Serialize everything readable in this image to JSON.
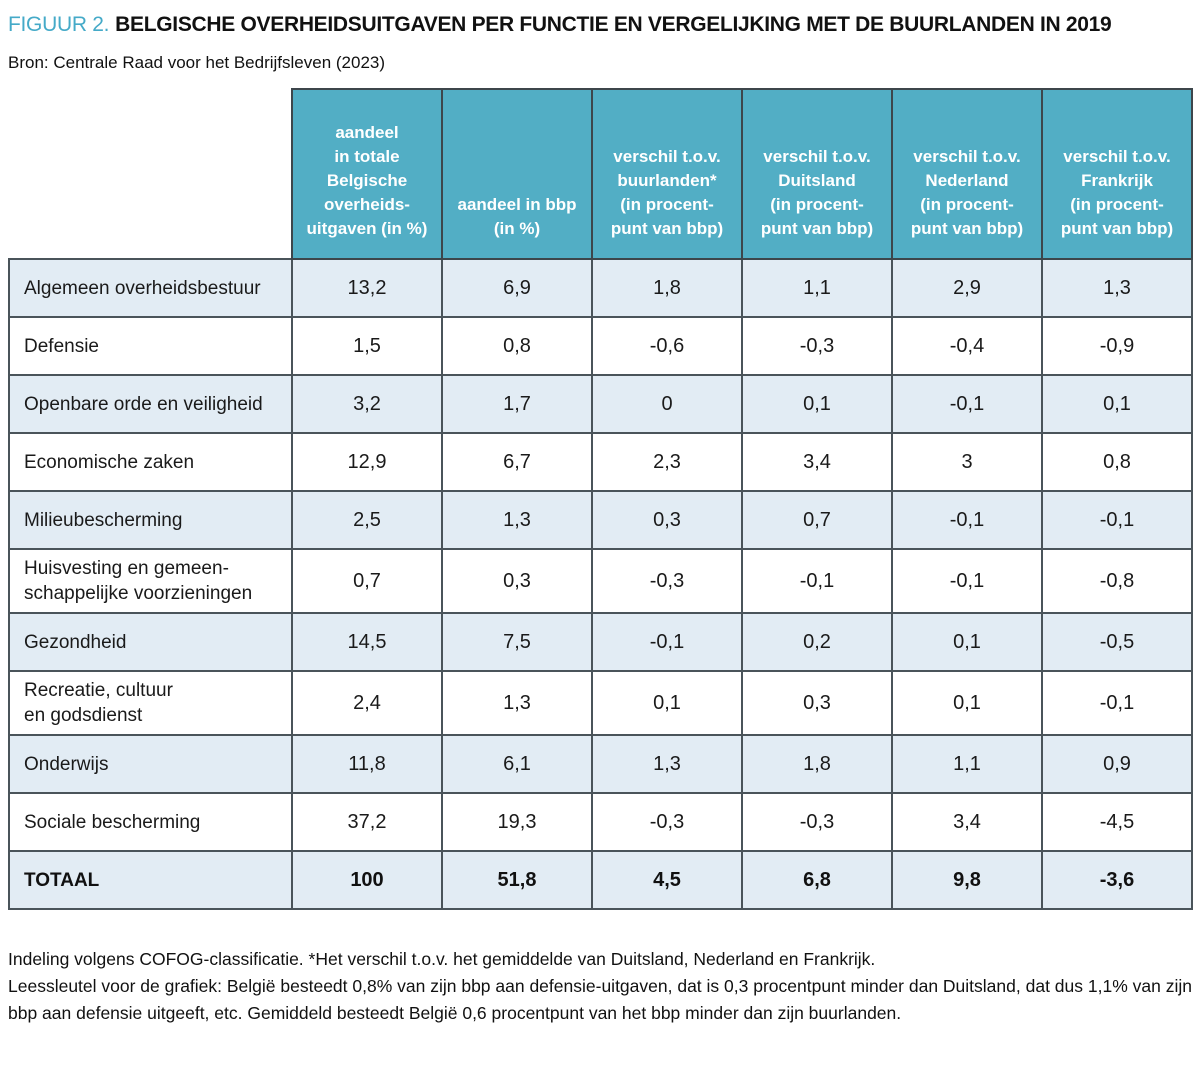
{
  "title": {
    "prefix": "FIGUUR 2.",
    "text": "BELGISCHE OVERHEIDSUITGAVEN PER FUNCTIE EN VERGELIJKING MET DE BUURLANDEN IN 2019"
  },
  "source": "Bron: Centrale Raad voor het Bedrijfsleven (2023)",
  "colors": {
    "accent": "#45aac8",
    "header_bg": "#52aec5",
    "alt_row_bg": "#e2ecf4",
    "border": "#4a545a"
  },
  "chart_data": {
    "type": "table",
    "columns": [
      [
        "aandeel",
        "in totale",
        "Belgische",
        "overheids-",
        "uitgaven (in %)"
      ],
      [
        "aandeel in bbp",
        "(in %)"
      ],
      [
        "verschil t.o.v.",
        "buurlanden*",
        "(in procent-",
        "punt van bbp)"
      ],
      [
        "verschil t.o.v.",
        "Duitsland",
        "(in procent-",
        "punt van bbp)"
      ],
      [
        "verschil t.o.v.",
        "Nederland",
        "(in procent-",
        "punt van bbp)"
      ],
      [
        "verschil t.o.v.",
        "Frankrijk",
        "(in procent-",
        "punt van bbp)"
      ]
    ],
    "rows": [
      {
        "label": "Algemeen overheidsbestuur",
        "values": [
          "13,2",
          "6,9",
          "1,8",
          "1,1",
          "2,9",
          "1,3"
        ],
        "total": false
      },
      {
        "label": "Defensie",
        "values": [
          "1,5",
          "0,8",
          "-0,6",
          "-0,3",
          "-0,4",
          "-0,9"
        ],
        "total": false
      },
      {
        "label": "Openbare orde en veiligheid",
        "values": [
          "3,2",
          "1,7",
          "0",
          "0,1",
          "-0,1",
          "0,1"
        ],
        "total": false
      },
      {
        "label": "Economische zaken",
        "values": [
          "12,9",
          "6,7",
          "2,3",
          "3,4",
          "3",
          "0,8"
        ],
        "total": false
      },
      {
        "label": "Milieubescherming",
        "values": [
          "2,5",
          "1,3",
          "0,3",
          "0,7",
          "-0,1",
          "-0,1"
        ],
        "total": false
      },
      {
        "label": [
          "Huisvesting en gemeen-",
          "schappelijke voorzieningen"
        ],
        "values": [
          "0,7",
          "0,3",
          "-0,3",
          "-0,1",
          "-0,1",
          "-0,8"
        ],
        "total": false
      },
      {
        "label": "Gezondheid",
        "values": [
          "14,5",
          "7,5",
          "-0,1",
          "0,2",
          "0,1",
          "-0,5"
        ],
        "total": false
      },
      {
        "label": [
          "Recreatie, cultuur",
          "en godsdienst"
        ],
        "values": [
          "2,4",
          "1,3",
          "0,1",
          "0,3",
          "0,1",
          "-0,1"
        ],
        "total": false
      },
      {
        "label": "Onderwijs",
        "values": [
          "11,8",
          "6,1",
          "1,3",
          "1,8",
          "1,1",
          "0,9"
        ],
        "total": false
      },
      {
        "label": "Sociale bescherming",
        "values": [
          "37,2",
          "19,3",
          "-0,3",
          "-0,3",
          "3,4",
          "-4,5"
        ],
        "total": false
      },
      {
        "label": "TOTAAL",
        "values": [
          "100",
          "51,8",
          "4,5",
          "6,8",
          "9,8",
          "-3,6"
        ],
        "total": true
      }
    ]
  },
  "footnotes": [
    "Indeling volgens COFOG-classificatie. *Het verschil t.o.v. het gemiddelde van Duitsland, Nederland en Frankrijk.",
    "Leessleutel voor de grafiek: België besteedt 0,8% van zijn bbp aan defensie-uitgaven, dat is 0,3 procentpunt minder dan Duitsland, dat dus 1,1% van zijn bbp aan defensie uitgeeft, etc. Gemiddeld besteedt België 0,6 procentpunt van het bbp minder dan zijn buurlanden."
  ]
}
